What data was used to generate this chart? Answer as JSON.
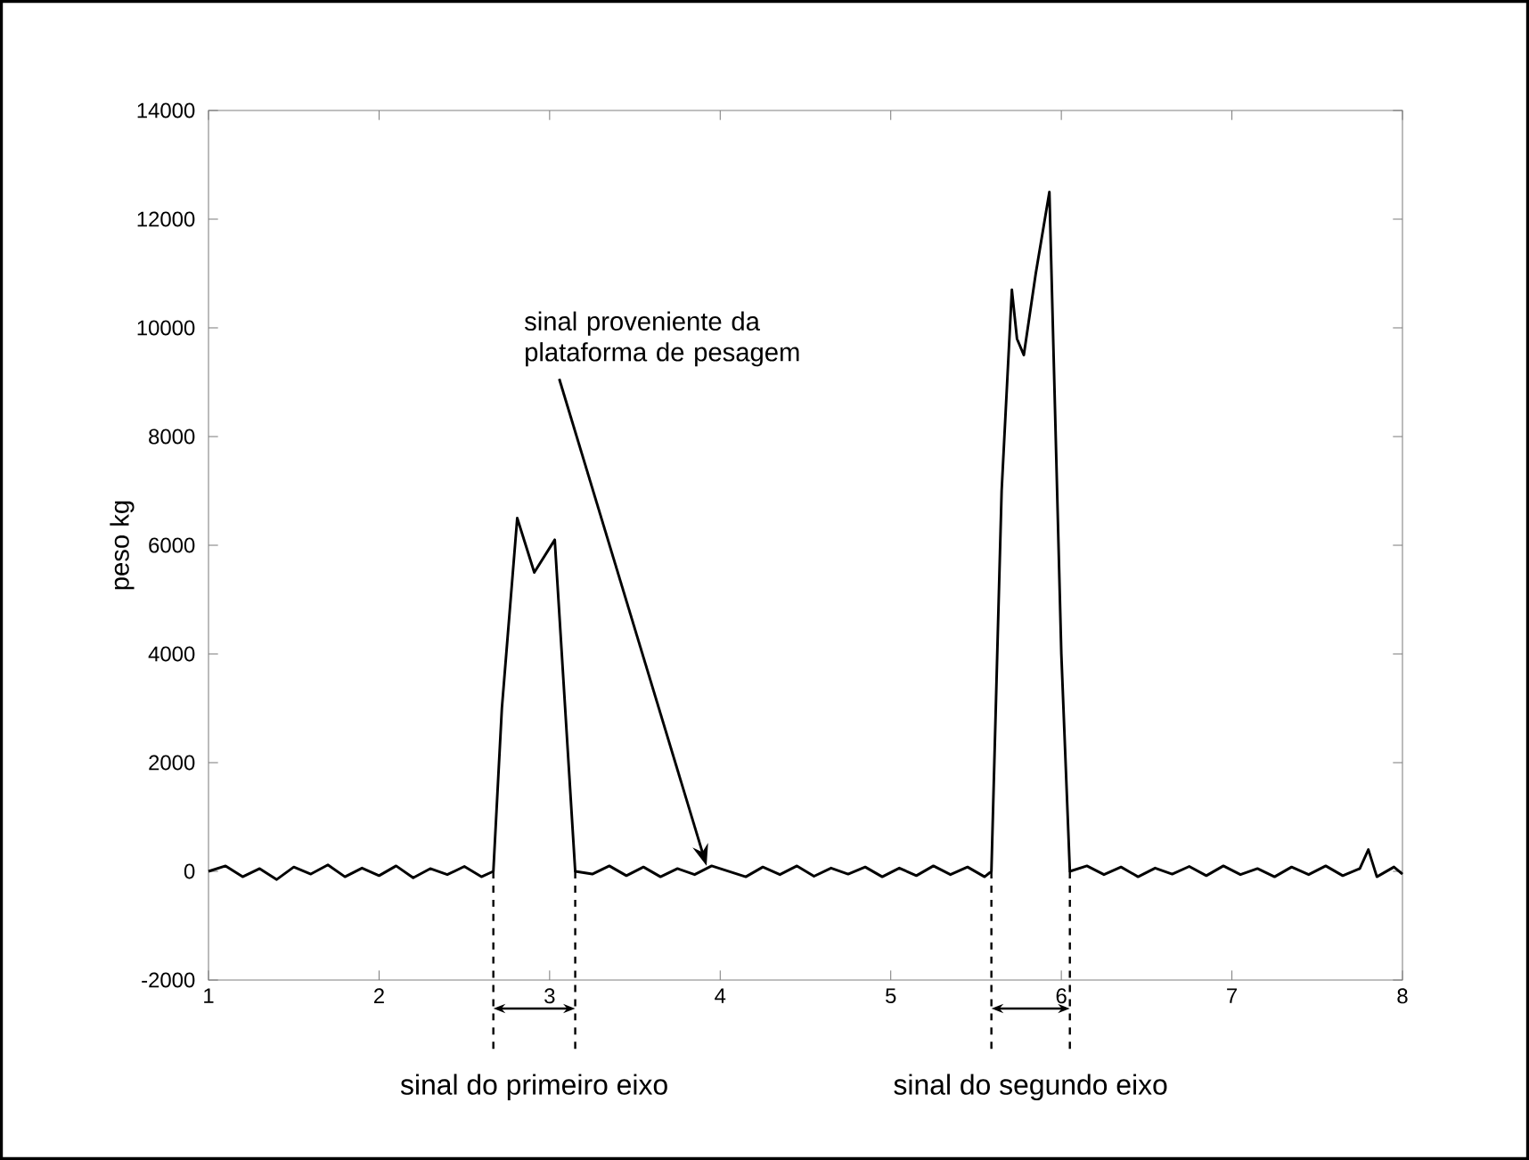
{
  "chart_data": {
    "type": "line",
    "ylabel": "peso kg",
    "color": "#000000",
    "x": [
      1.0,
      1.1,
      1.2,
      1.3,
      1.4,
      1.5,
      1.6,
      1.7,
      1.8,
      1.9,
      2.0,
      2.1,
      2.2,
      2.3,
      2.4,
      2.5,
      2.6,
      2.67,
      2.72,
      2.81,
      2.86,
      2.91,
      2.97,
      3.03,
      3.15,
      3.25,
      3.35,
      3.45,
      3.55,
      3.65,
      3.75,
      3.85,
      3.95,
      4.05,
      4.15,
      4.25,
      4.35,
      4.45,
      4.55,
      4.65,
      4.75,
      4.85,
      4.95,
      5.05,
      5.15,
      5.25,
      5.35,
      5.45,
      5.55,
      5.59,
      5.65,
      5.71,
      5.74,
      5.78,
      5.85,
      5.93,
      6.0,
      6.05,
      6.15,
      6.25,
      6.35,
      6.45,
      6.55,
      6.65,
      6.75,
      6.85,
      6.95,
      7.05,
      7.15,
      7.25,
      7.35,
      7.45,
      7.55,
      7.65,
      7.75,
      7.8,
      7.85,
      7.95,
      8.0
    ],
    "values": [
      0,
      100,
      -100,
      50,
      -150,
      80,
      -50,
      120,
      -100,
      60,
      -80,
      100,
      -120,
      50,
      -60,
      90,
      -100,
      0,
      3000,
      6500,
      6000,
      5500,
      5800,
      6100,
      0,
      -50,
      100,
      -80,
      80,
      -100,
      50,
      -60,
      100,
      0,
      -100,
      80,
      -60,
      100,
      -90,
      60,
      -50,
      80,
      -100,
      60,
      -80,
      100,
      -60,
      80,
      -100,
      0,
      7000,
      10700,
      9800,
      9500,
      11000,
      12500,
      4000,
      0,
      100,
      -60,
      80,
      -100,
      60,
      -50,
      90,
      -80,
      100,
      -60,
      50,
      -100,
      80,
      -60,
      100,
      -80,
      50,
      400,
      -100,
      80,
      -50
    ],
    "xlim": [
      1,
      8
    ],
    "ylim": [
      -2000,
      14000
    ],
    "xticks": [
      1,
      2,
      3,
      4,
      5,
      6,
      7,
      8
    ],
    "yticks": [
      -2000,
      0,
      2000,
      4000,
      6000,
      8000,
      10000,
      12000,
      14000
    ],
    "grid": false,
    "marker": "none",
    "line_style": "solid",
    "annotations": [
      {
        "text": "sinal proveniente da plataforma de pesagem",
        "x": 3.92,
        "y": 100
      },
      "sinal do primeiro eixo",
      "sinal do segundo eixo"
    ],
    "ref_lines": [
      {
        "axis": "x",
        "value": 2.67,
        "line_style": "dashed"
      },
      {
        "axis": "x",
        "value": 3.15,
        "line_style": "dashed"
      },
      {
        "axis": "x",
        "value": 5.59,
        "line_style": "dashed"
      },
      {
        "axis": "x",
        "value": 6.05,
        "line_style": "dashed"
      }
    ]
  }
}
